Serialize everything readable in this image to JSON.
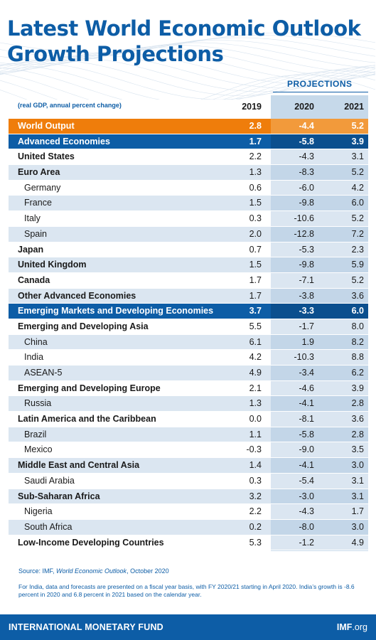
{
  "header": {
    "title_line1": "Latest World Economic Outlook",
    "title_line2": "Growth Projections",
    "projections_label": "PROJECTIONS",
    "units": "(real GDP, annual percent change)"
  },
  "chart_data": {
    "type": "table",
    "columns": [
      "2019",
      "2020",
      "2021"
    ],
    "rows": [
      {
        "label": "World Output",
        "style": "world",
        "values": [
          "2.8",
          "-4.4",
          "5.2"
        ]
      },
      {
        "label": "Advanced Economies",
        "style": "header",
        "values": [
          "1.7",
          "-5.8",
          "3.9"
        ]
      },
      {
        "label": "United States",
        "style": "group",
        "values": [
          "2.2",
          "-4.3",
          "3.1"
        ]
      },
      {
        "label": "Euro Area",
        "style": "group",
        "values": [
          "1.3",
          "-8.3",
          "5.2"
        ]
      },
      {
        "label": "Germany",
        "style": "sub",
        "values": [
          "0.6",
          "-6.0",
          "4.2"
        ]
      },
      {
        "label": "France",
        "style": "sub",
        "values": [
          "1.5",
          "-9.8",
          "6.0"
        ]
      },
      {
        "label": "Italy",
        "style": "sub",
        "values": [
          "0.3",
          "-10.6",
          "5.2"
        ]
      },
      {
        "label": "Spain",
        "style": "sub",
        "values": [
          "2.0",
          "-12.8",
          "7.2"
        ]
      },
      {
        "label": "Japan",
        "style": "group",
        "values": [
          "0.7",
          "-5.3",
          "2.3"
        ]
      },
      {
        "label": "United Kingdom",
        "style": "group",
        "values": [
          "1.5",
          "-9.8",
          "5.9"
        ]
      },
      {
        "label": "Canada",
        "style": "group",
        "values": [
          "1.7",
          "-7.1",
          "5.2"
        ]
      },
      {
        "label": "Other Advanced Economies",
        "style": "group",
        "values": [
          "1.7",
          "-3.8",
          "3.6"
        ]
      },
      {
        "label": "Emerging Markets and Developing Economies",
        "style": "header",
        "values": [
          "3.7",
          "-3.3",
          "6.0"
        ]
      },
      {
        "label": "Emerging and Developing Asia",
        "style": "group",
        "values": [
          "5.5",
          "-1.7",
          "8.0"
        ]
      },
      {
        "label": "China",
        "style": "sub",
        "values": [
          "6.1",
          "1.9",
          "8.2"
        ]
      },
      {
        "label": "India",
        "style": "sub",
        "values": [
          "4.2",
          "-10.3",
          "8.8"
        ]
      },
      {
        "label": "ASEAN-5",
        "style": "sub",
        "values": [
          "4.9",
          "-3.4",
          "6.2"
        ]
      },
      {
        "label": "Emerging and Developing Europe",
        "style": "group",
        "values": [
          "2.1",
          "-4.6",
          "3.9"
        ]
      },
      {
        "label": "Russia",
        "style": "sub",
        "values": [
          "1.3",
          "-4.1",
          "2.8"
        ]
      },
      {
        "label": "Latin America and the Caribbean",
        "style": "group",
        "values": [
          "0.0",
          "-8.1",
          "3.6"
        ]
      },
      {
        "label": "Brazil",
        "style": "sub",
        "values": [
          "1.1",
          "-5.8",
          "2.8"
        ]
      },
      {
        "label": "Mexico",
        "style": "sub",
        "values": [
          "-0.3",
          "-9.0",
          "3.5"
        ]
      },
      {
        "label": "Middle East and Central Asia",
        "style": "group",
        "values": [
          "1.4",
          "-4.1",
          "3.0"
        ]
      },
      {
        "label": "Saudi Arabia",
        "style": "sub",
        "values": [
          "0.3",
          "-5.4",
          "3.1"
        ]
      },
      {
        "label": "Sub-Saharan Africa",
        "style": "group",
        "values": [
          "3.2",
          "-3.0",
          "3.1"
        ]
      },
      {
        "label": "Nigeria",
        "style": "sub",
        "values": [
          "2.2",
          "-4.3",
          "1.7"
        ]
      },
      {
        "label": "South Africa",
        "style": "sub",
        "values": [
          "0.2",
          "-8.0",
          "3.0"
        ]
      },
      {
        "label": "Low-Income Developing Countries",
        "style": "group",
        "values": [
          "5.3",
          "-1.2",
          "4.9"
        ]
      }
    ]
  },
  "source": {
    "prefix": "Source: IMF, ",
    "publication": "World Economic Outlook",
    "suffix": ", October 2020"
  },
  "note": "For India, data and forecasts are presented on a fiscal year basis, with FY 2020/21 starting in April 2020. India’s growth is -8.6 percent in 2020 and 6.8 percent in 2021 based on the calendar year.",
  "footer": {
    "org": "INTERNATIONAL MONETARY FUND",
    "site_prefix": "IMF",
    "site_suffix": ".org"
  },
  "colors": {
    "brand_blue": "#0d5da6",
    "world_orange": "#ef7d0b",
    "row_blue": "#dbe6f1",
    "projection_band": "#c6d9ea"
  }
}
